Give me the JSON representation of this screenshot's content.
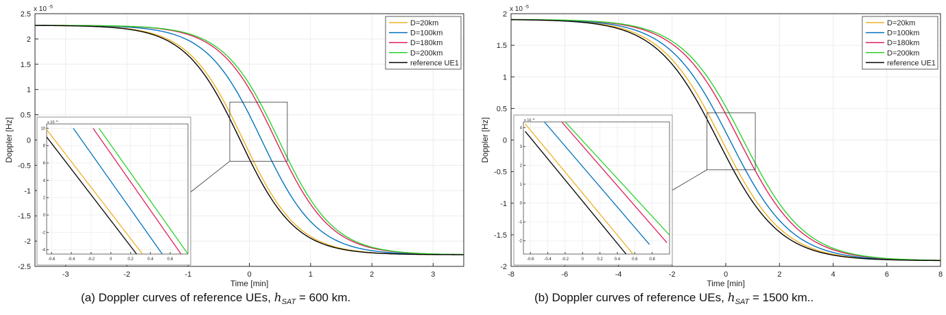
{
  "figure": {
    "caption_a_prefix": "(a) Doppler curves of reference UEs,",
    "caption_a_math": "h",
    "caption_a_sub": "SAT",
    "caption_a_rest": " = 600 km.",
    "caption_b_prefix": "(b) Doppler curves of reference UEs,",
    "caption_b_math": "h",
    "caption_b_sub": "SAT",
    "caption_b_rest": " = 1500 km.."
  },
  "chart_data": [
    {
      "type": "line",
      "xlabel": "Time [min]",
      "ylabel": "Doppler [Hz]",
      "yexp": "x 10",
      "yexp_pow": "-5",
      "xlim": [
        -3.5,
        3.5
      ],
      "ylim": [
        -2.5,
        2.5
      ],
      "xticks": [
        -3,
        -2,
        -1,
        0,
        1,
        2,
        3
      ],
      "yticks": [
        -2.5,
        -2,
        -1.5,
        -1,
        -0.5,
        0,
        0.5,
        1,
        1.5,
        2,
        2.5
      ],
      "amplitude": 2.27,
      "grid": true,
      "legend_position": "top-right",
      "series": [
        {
          "name": "D=20km",
          "color": "#EDB120",
          "shift": -0.1,
          "width": 0.9
        },
        {
          "name": "D=100km",
          "color": "#0072BD",
          "shift": 0.2,
          "width": 0.9
        },
        {
          "name": "D=180km",
          "color": "#E01E5A",
          "shift": 0.43,
          "width": 0.9
        },
        {
          "name": "D=200km",
          "color": "#2BD12B",
          "shift": 0.48,
          "width": 0.9
        },
        {
          "name": "reference UE1",
          "color": "#000000",
          "shift": -0.15,
          "width": 0.9
        }
      ],
      "zoom_box": {
        "xlim": [
          -0.32,
          0.62
        ],
        "ylim": [
          -0.42,
          0.75
        ]
      },
      "inset": {
        "xlim": [
          -0.65,
          0.78
        ],
        "ylim": [
          -4.5,
          10.5
        ],
        "xticks": [
          -0.6,
          -0.4,
          -0.2,
          0,
          0.2,
          0.4,
          0.6
        ],
        "yticks": [
          -4,
          -2,
          0,
          2,
          4,
          6,
          8,
          10
        ],
        "yexp": "x 10",
        "yexp_pow": "-6",
        "series": [
          {
            "x": [
              -0.66,
              0.32
            ],
            "y": [
              10.0,
              -4.5
            ]
          },
          {
            "x": [
              -0.38,
              0.52
            ],
            "y": [
              10.0,
              -4.5
            ]
          },
          {
            "x": [
              -0.18,
              0.71
            ],
            "y": [
              10.0,
              -4.5
            ]
          },
          {
            "x": [
              -0.12,
              0.78
            ],
            "y": [
              10.0,
              -4.5
            ]
          },
          {
            "x": [
              -0.65,
              0.26
            ],
            "y": [
              9.0,
              -4.5
            ]
          }
        ]
      }
    },
    {
      "type": "line",
      "xlabel": "Time [min]",
      "ylabel": "Doppler [Hz]",
      "yexp": "x 10",
      "yexp_pow": "-5",
      "xlim": [
        -8,
        8
      ],
      "ylim": [
        -2,
        2
      ],
      "xticks": [
        -8,
        -6,
        -4,
        -2,
        0,
        2,
        4,
        6,
        8
      ],
      "yticks": [
        -2,
        -1.5,
        -1,
        -0.5,
        0,
        0.5,
        1,
        1.5,
        2
      ],
      "amplitude": 1.91,
      "grid": true,
      "legend_position": "top-right",
      "series": [
        {
          "name": "D=20km",
          "color": "#EDB120",
          "shift": -0.15,
          "width": 2.3
        },
        {
          "name": "D=100km",
          "color": "#0072BD",
          "shift": 0.15,
          "width": 2.3
        },
        {
          "name": "D=180km",
          "color": "#E01E5A",
          "shift": 0.5,
          "width": 2.3
        },
        {
          "name": "D=200km",
          "color": "#2BD12B",
          "shift": 0.65,
          "width": 2.3
        },
        {
          "name": "reference UE1",
          "color": "#000000",
          "shift": -0.3,
          "width": 2.3
        }
      ],
      "zoom_box": {
        "xlim": [
          -0.7,
          1.1
        ],
        "ylim": [
          -0.47,
          0.43
        ]
      },
      "inset": {
        "xlim": [
          -0.68,
          1.0
        ],
        "ylim": [
          -2.7,
          4.3
        ],
        "xticks": [
          -0.6,
          -0.4,
          -0.2,
          0,
          0.2,
          0.4,
          0.6,
          0.8
        ],
        "yticks": [
          -2,
          -1,
          0,
          1,
          2,
          3,
          4
        ],
        "yexp": "x 10",
        "yexp_pow": "-6",
        "series": [
          {
            "x": [
              -0.66,
              0.58
            ],
            "y": [
              4.2,
              -2.7
            ]
          },
          {
            "x": [
              -0.44,
              0.77
            ],
            "y": [
              4.3,
              -2.2
            ]
          },
          {
            "x": [
              -0.24,
              0.97
            ],
            "y": [
              4.3,
              -2.1
            ]
          },
          {
            "x": [
              -0.2,
              1.0
            ],
            "y": [
              4.3,
              -1.7
            ]
          },
          {
            "x": [
              -0.66,
              0.5
            ],
            "y": [
              3.8,
              -2.7
            ]
          }
        ]
      }
    }
  ]
}
